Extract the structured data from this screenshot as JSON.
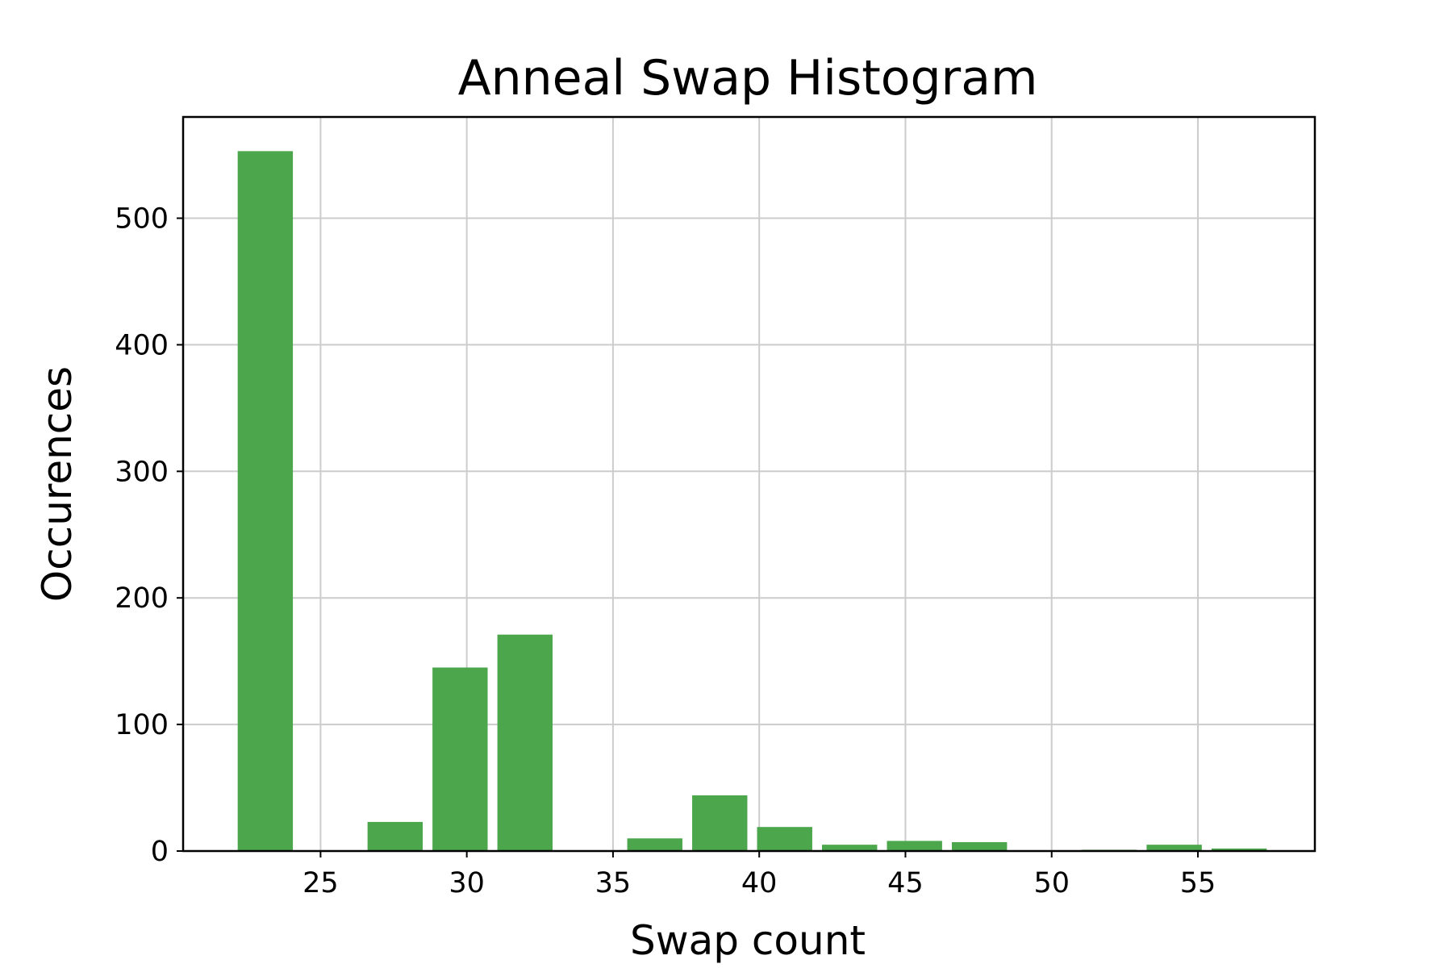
{
  "chart_data": {
    "type": "bar",
    "title": "Anneal Swap Histogram",
    "xlabel": "Swap count",
    "ylabel": "Occurences",
    "xlim": [
      20.3,
      59
    ],
    "ylim": [
      0,
      580
    ],
    "xticks": [
      25,
      30,
      35,
      40,
      45,
      50,
      55
    ],
    "yticks": [
      0,
      100,
      200,
      300,
      400,
      500
    ],
    "grid": true,
    "bar_color": "#4ca64c",
    "bin_width": 2.22,
    "bins": [
      {
        "x": 23.11,
        "value": 553
      },
      {
        "x": 25.33,
        "value": 0
      },
      {
        "x": 27.55,
        "value": 23
      },
      {
        "x": 29.77,
        "value": 145
      },
      {
        "x": 31.99,
        "value": 171
      },
      {
        "x": 34.21,
        "value": 0
      },
      {
        "x": 36.43,
        "value": 10
      },
      {
        "x": 38.65,
        "value": 44
      },
      {
        "x": 40.87,
        "value": 19
      },
      {
        "x": 43.09,
        "value": 5
      },
      {
        "x": 45.31,
        "value": 8
      },
      {
        "x": 47.53,
        "value": 7
      },
      {
        "x": 49.75,
        "value": 0
      },
      {
        "x": 51.97,
        "value": 1
      },
      {
        "x": 54.19,
        "value": 5
      },
      {
        "x": 56.41,
        "value": 2
      }
    ]
  }
}
